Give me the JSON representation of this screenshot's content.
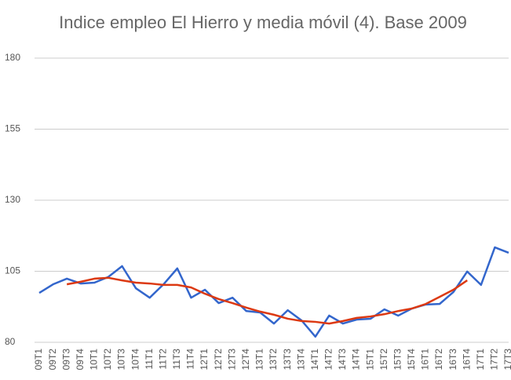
{
  "chart_data": {
    "type": "line",
    "title": "Indice empleo El Hierro  y media móvil (4). Base 2009",
    "categories": [
      "09T1",
      "09T2",
      "09T3",
      "09T4",
      "10T1",
      "10T2",
      "10T3",
      "10T4",
      "11T1",
      "11T2",
      "11T3",
      "11T4",
      "12T1",
      "12T2",
      "12T3",
      "12T4",
      "13T1",
      "13T2",
      "13T3",
      "13T4",
      "14T1",
      "14T2",
      "14T3",
      "14T4",
      "15T1",
      "15T2",
      "15T3",
      "15T4",
      "16T1",
      "16T2",
      "16T3",
      "16T4",
      "17T1",
      "17T2",
      "17T3"
    ],
    "series": [
      {
        "color": "#3366cc",
        "values": [
          97.4,
          100.4,
          102.4,
          100.7,
          101,
          103,
          106.8,
          99,
          95.7,
          100.4,
          106,
          95.7,
          98.5,
          93.8,
          95.7,
          91,
          90.5,
          86.6,
          91.3,
          87.7,
          82,
          89.4,
          86.6,
          88,
          88.3,
          91.6,
          89.4,
          91.9,
          93.3,
          93.5,
          97.7,
          104.9,
          100.2,
          113.4,
          111.5
        ]
      },
      {
        "color": "#dc3912",
        "values": [
          null,
          null,
          100.4,
          101.3,
          102.4,
          102.7,
          101.8,
          101,
          100.7,
          100.2,
          100.2,
          99.3,
          97.1,
          95.2,
          93.8,
          92.2,
          90.8,
          89.7,
          88.3,
          87.5,
          87.2,
          86.6,
          87.5,
          88.6,
          89.1,
          89.9,
          91,
          91.9,
          93.5,
          96,
          98.5,
          101.8,
          null,
          null,
          null
        ]
      }
    ],
    "ylim": [
      80,
      180
    ],
    "yticks": [
      80,
      105,
      130,
      155,
      180
    ],
    "grid": true
  }
}
